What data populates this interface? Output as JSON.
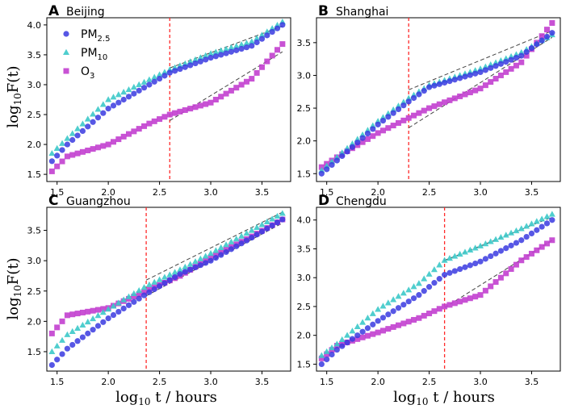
{
  "colors": {
    "pm25": "#3a3ae0",
    "pm10": "#3cc9c9",
    "o3": "#c23fcf",
    "vline": "#ff2a2a",
    "fit": "#444444"
  },
  "xlabel": {
    "main": "log",
    "sub": "10",
    "rest": " t / hours"
  },
  "ylabel": {
    "main": "log",
    "sub": "10",
    "rest": "F(t)"
  },
  "legend": [
    {
      "key": "pm25",
      "main": "PM",
      "sub": "2.5",
      "icon": "circle-marker-icon"
    },
    {
      "key": "pm10",
      "main": "PM",
      "sub": "10",
      "icon": "triangle-marker-icon"
    },
    {
      "key": "o3",
      "main": "O",
      "sub": "3",
      "icon": "square-marker-icon"
    }
  ],
  "chart_data": [
    {
      "type": "scatter",
      "label": "A",
      "title": "Beijing",
      "xticks": [
        "1.5",
        "2.0",
        "2.5",
        "3.0",
        "3.5"
      ],
      "yticks": [
        "1.5",
        "2.0",
        "2.5",
        "3.0",
        "3.5",
        "4.0"
      ],
      "xlim": [
        1.4,
        3.78
      ],
      "ylim": [
        1.38,
        4.12
      ],
      "vline": 2.6,
      "series": {
        "pm25": [
          [
            1.45,
            1.72
          ],
          [
            1.6,
            2.0
          ],
          [
            2.0,
            2.6
          ],
          [
            2.6,
            3.2
          ],
          [
            3.0,
            3.45
          ],
          [
            3.4,
            3.65
          ],
          [
            3.7,
            4.0
          ]
        ],
        "pm10": [
          [
            1.45,
            1.85
          ],
          [
            1.6,
            2.1
          ],
          [
            2.0,
            2.75
          ],
          [
            2.6,
            3.25
          ],
          [
            3.0,
            3.52
          ],
          [
            3.4,
            3.72
          ],
          [
            3.7,
            4.05
          ]
        ],
        "o3": [
          [
            1.45,
            1.55
          ],
          [
            1.6,
            1.8
          ],
          [
            2.0,
            2.0
          ],
          [
            2.4,
            2.35
          ],
          [
            2.6,
            2.5
          ],
          [
            3.0,
            2.7
          ],
          [
            3.4,
            3.1
          ],
          [
            3.7,
            3.68
          ]
        ]
      },
      "fits": [
        [
          [
            2.6,
            3.28
          ],
          [
            3.7,
            3.98
          ]
        ],
        [
          [
            2.6,
            2.4
          ],
          [
            3.7,
            3.55
          ]
        ]
      ]
    },
    {
      "type": "scatter",
      "label": "B",
      "title": "Shanghai",
      "xticks": [
        "1.5",
        "2.0",
        "2.5",
        "3.0",
        "3.5"
      ],
      "yticks": [
        "1.5",
        "2.0",
        "2.5",
        "3.0",
        "3.5"
      ],
      "xlim": [
        1.4,
        3.78
      ],
      "ylim": [
        1.38,
        3.88
      ],
      "vline": 2.3,
      "series": {
        "pm25": [
          [
            1.45,
            1.5
          ],
          [
            1.6,
            1.7
          ],
          [
            2.0,
            2.25
          ],
          [
            2.3,
            2.6
          ],
          [
            2.5,
            2.82
          ],
          [
            3.0,
            3.05
          ],
          [
            3.4,
            3.3
          ],
          [
            3.7,
            3.65
          ]
        ],
        "pm10": [
          [
            1.45,
            1.55
          ],
          [
            1.6,
            1.75
          ],
          [
            2.0,
            2.3
          ],
          [
            2.3,
            2.65
          ],
          [
            2.5,
            2.85
          ],
          [
            3.0,
            3.1
          ],
          [
            3.4,
            3.35
          ],
          [
            3.7,
            3.62
          ]
        ],
        "o3": [
          [
            1.45,
            1.6
          ],
          [
            1.6,
            1.75
          ],
          [
            2.0,
            2.12
          ],
          [
            2.3,
            2.35
          ],
          [
            2.5,
            2.5
          ],
          [
            3.0,
            2.8
          ],
          [
            3.4,
            3.2
          ],
          [
            3.7,
            3.8
          ]
        ]
      },
      "fits": [
        [
          [
            2.3,
            2.78
          ],
          [
            3.7,
            3.68
          ]
        ],
        [
          [
            2.3,
            2.2
          ],
          [
            3.7,
            3.58
          ]
        ]
      ]
    },
    {
      "type": "scatter",
      "label": "C",
      "title": "Guangzhou",
      "xticks": [
        "1.5",
        "2.0",
        "2.5",
        "3.0",
        "3.5"
      ],
      "yticks": [
        "1.5",
        "2.0",
        "2.5",
        "3.0",
        "3.5"
      ],
      "xlim": [
        1.4,
        3.78
      ],
      "ylim": [
        1.18,
        3.88
      ],
      "vline": 2.37,
      "series": {
        "pm25": [
          [
            1.45,
            1.28
          ],
          [
            1.6,
            1.55
          ],
          [
            2.0,
            2.05
          ],
          [
            2.37,
            2.45
          ],
          [
            2.7,
            2.78
          ],
          [
            3.0,
            3.0
          ],
          [
            3.4,
            3.38
          ],
          [
            3.7,
            3.68
          ]
        ],
        "pm10": [
          [
            1.45,
            1.5
          ],
          [
            1.6,
            1.78
          ],
          [
            2.0,
            2.2
          ],
          [
            2.37,
            2.58
          ],
          [
            2.7,
            2.85
          ],
          [
            3.0,
            3.12
          ],
          [
            3.4,
            3.5
          ],
          [
            3.7,
            3.78
          ]
        ],
        "o3": [
          [
            1.45,
            1.8
          ],
          [
            1.6,
            2.1
          ],
          [
            2.0,
            2.22
          ],
          [
            2.37,
            2.5
          ],
          [
            2.7,
            2.75
          ],
          [
            3.0,
            3.05
          ],
          [
            3.4,
            3.4
          ],
          [
            3.7,
            3.68
          ]
        ]
      },
      "fits": [
        [
          [
            2.37,
            2.68
          ],
          [
            3.7,
            3.8
          ]
        ],
        [
          [
            2.37,
            2.42
          ],
          [
            3.7,
            3.62
          ]
        ]
      ]
    },
    {
      "type": "scatter",
      "label": "D",
      "title": "Chengdu",
      "xticks": [
        "1.5",
        "2.0",
        "2.5",
        "3.0",
        "3.5"
      ],
      "yticks": [
        "1.5",
        "2.0",
        "2.5",
        "3.0",
        "3.5",
        "4.0"
      ],
      "xlim": [
        1.4,
        3.78
      ],
      "ylim": [
        1.38,
        4.22
      ],
      "vline": 2.65,
      "series": {
        "pm25": [
          [
            1.45,
            1.5
          ],
          [
            1.6,
            1.75
          ],
          [
            2.0,
            2.25
          ],
          [
            2.4,
            2.7
          ],
          [
            2.65,
            3.05
          ],
          [
            3.0,
            3.28
          ],
          [
            3.4,
            3.65
          ],
          [
            3.7,
            4.0
          ]
        ],
        "pm10": [
          [
            1.45,
            1.65
          ],
          [
            1.6,
            1.85
          ],
          [
            2.0,
            2.45
          ],
          [
            2.4,
            2.9
          ],
          [
            2.65,
            3.3
          ],
          [
            3.0,
            3.55
          ],
          [
            3.4,
            3.85
          ],
          [
            3.7,
            4.1
          ]
        ],
        "o3": [
          [
            1.45,
            1.6
          ],
          [
            1.6,
            1.82
          ],
          [
            2.0,
            2.05
          ],
          [
            2.4,
            2.3
          ],
          [
            2.65,
            2.5
          ],
          [
            3.0,
            2.7
          ],
          [
            3.4,
            3.3
          ],
          [
            3.7,
            3.65
          ]
        ]
      },
      "fits": [
        [
          [
            2.65,
            3.3
          ],
          [
            3.7,
            4.05
          ]
        ],
        [
          [
            2.65,
            2.48
          ],
          [
            3.7,
            3.65
          ]
        ]
      ]
    }
  ]
}
